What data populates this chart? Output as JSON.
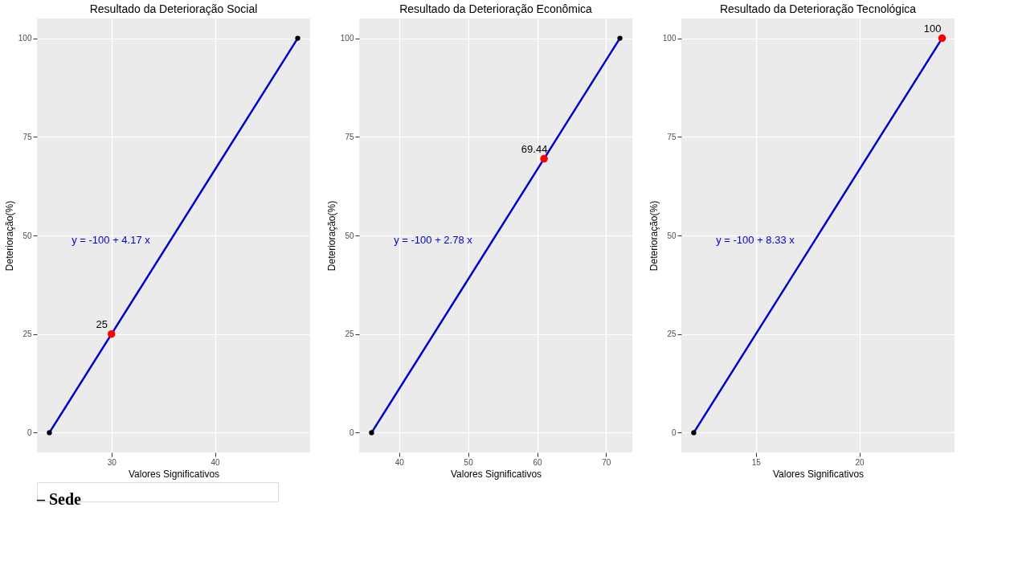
{
  "chart_data": [
    {
      "type": "line",
      "title": "Resultado da Deterioração Social",
      "xlabel": "Valores Significativos",
      "ylabel": "Deterioração(%)",
      "xlim": [
        22.8,
        49.2
      ],
      "xticks": [
        30,
        40
      ],
      "ylim": [
        -5,
        105
      ],
      "yticks": [
        0,
        25,
        50,
        75,
        100
      ],
      "grid": true,
      "series": [
        {
          "color": "#0000cc",
          "x": [
            24,
            48
          ],
          "values": [
            0,
            100
          ]
        },
        {
          "type": "scatter",
          "color": "#000000",
          "x": [
            24,
            48
          ],
          "values": [
            0,
            100
          ]
        },
        {
          "type": "scatter",
          "color": "#ff0000",
          "x": [
            30
          ],
          "values": [
            25
          ],
          "value_labels": [
            "25"
          ]
        }
      ],
      "annotations": [
        "y = -100 + 4.17 x",
        "– Sede"
      ]
    },
    {
      "type": "line",
      "title": "Resultado da Deterioração Econômica",
      "xlabel": "Valores Significativos",
      "ylabel": "Deterioração(%)",
      "xlim": [
        34.2,
        73.8
      ],
      "xticks": [
        40,
        50,
        60,
        70
      ],
      "ylim": [
        -5,
        105
      ],
      "yticks": [
        0,
        25,
        50,
        75,
        100
      ],
      "grid": true,
      "series": [
        {
          "color": "#0000cc",
          "x": [
            36,
            72
          ],
          "values": [
            0,
            100
          ]
        },
        {
          "type": "scatter",
          "color": "#000000",
          "x": [
            36,
            72
          ],
          "values": [
            0,
            100
          ]
        },
        {
          "type": "scatter",
          "color": "#ff0000",
          "x": [
            61
          ],
          "values": [
            69.44
          ],
          "value_labels": [
            "69.44"
          ]
        }
      ],
      "annotations": [
        "y = -100 + 2.78 x"
      ]
    },
    {
      "type": "line",
      "title": "Resultado da Deterioração Tecnológica",
      "xlabel": "Valores Significativos",
      "ylabel": "Deterioração(%)",
      "xlim": [
        11.4,
        24.6
      ],
      "xticks": [
        15,
        20
      ],
      "ylim": [
        -5,
        105
      ],
      "yticks": [
        0,
        25,
        50,
        75,
        100
      ],
      "grid": true,
      "series": [
        {
          "color": "#0000cc",
          "x": [
            12,
            24
          ],
          "values": [
            0,
            100
          ]
        },
        {
          "type": "scatter",
          "color": "#000000",
          "x": [
            12
          ],
          "values": [
            0
          ]
        },
        {
          "type": "scatter",
          "color": "#ff0000",
          "x": [
            24
          ],
          "values": [
            100
          ],
          "value_labels": [
            "100"
          ]
        }
      ],
      "annotations": [
        "y = -100 + 8.33 x"
      ]
    }
  ]
}
